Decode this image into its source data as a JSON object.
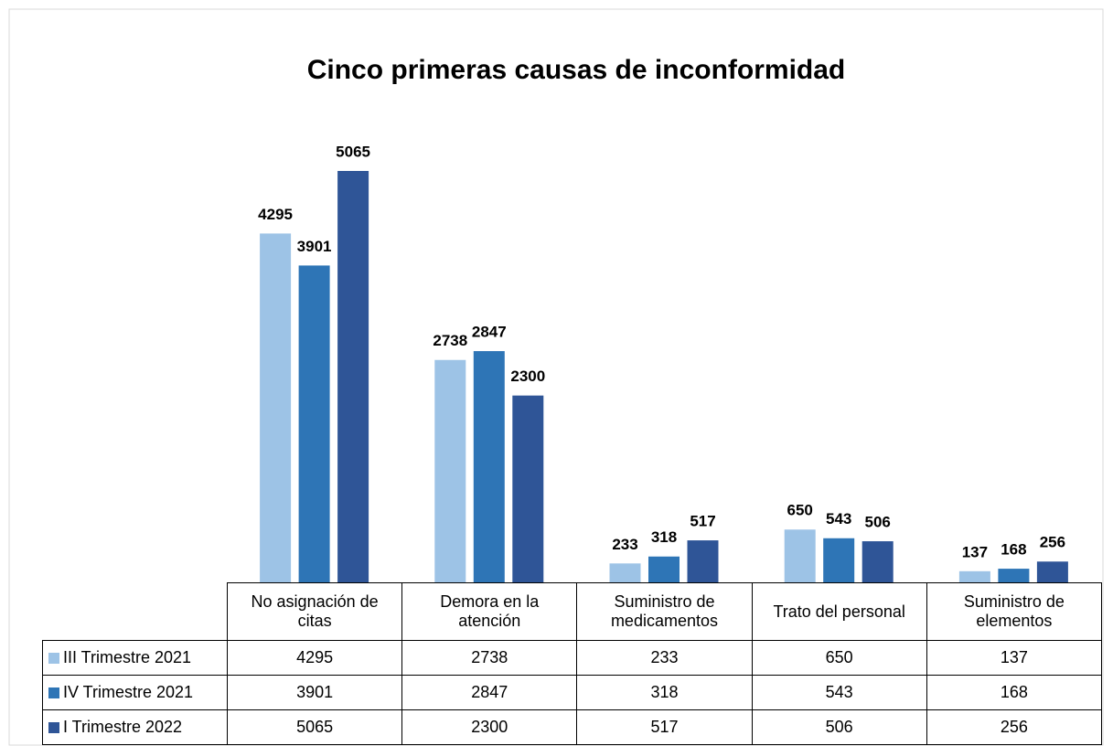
{
  "chart_data": {
    "type": "bar",
    "title": "Cinco primeras causas de inconformidad",
    "categories": [
      "No asignación de citas",
      "Demora en la atención",
      "Suministro de medicamentos",
      "Trato del personal",
      "Suministro de elementos"
    ],
    "series": [
      {
        "name": "III Trimestre 2021",
        "color": "#9dc3e6",
        "values": [
          4295,
          2738,
          233,
          650,
          137
        ]
      },
      {
        "name": "IV Trimestre 2021",
        "color": "#2e75b6",
        "values": [
          3901,
          2847,
          318,
          543,
          168
        ]
      },
      {
        "name": "I Trimestre 2022",
        "color": "#2f5597",
        "values": [
          5065,
          2300,
          517,
          506,
          256
        ]
      }
    ]
  }
}
